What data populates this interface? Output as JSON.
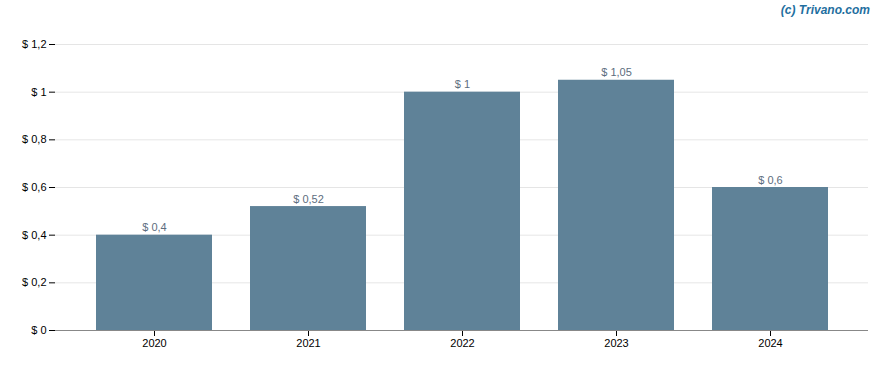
{
  "chart_data": {
    "type": "bar",
    "annotation": "(c) Trivano.com",
    "categories": [
      "2020",
      "2021",
      "2022",
      "2023",
      "2024"
    ],
    "values": [
      0.4,
      0.52,
      1.0,
      1.05,
      0.6
    ],
    "value_labels": [
      "$ 0,4",
      "$ 0,52",
      "$ 1",
      "$ 1,05",
      "$ 0,6"
    ],
    "data_labels": true,
    "color": "#5f8298",
    "ylim": [
      0,
      1.2
    ],
    "yticks": [
      {
        "value": 0,
        "label": "$ 0"
      },
      {
        "value": 0.2,
        "label": "$ 0,2"
      },
      {
        "value": 0.4,
        "label": "$ 0,4"
      },
      {
        "value": 0.6,
        "label": "$ 0,6"
      },
      {
        "value": 0.8,
        "label": "$ 0,8"
      },
      {
        "value": 1.0,
        "label": "$ 1"
      },
      {
        "value": 1.2,
        "label": "$ 1,2"
      }
    ],
    "grid": true
  }
}
